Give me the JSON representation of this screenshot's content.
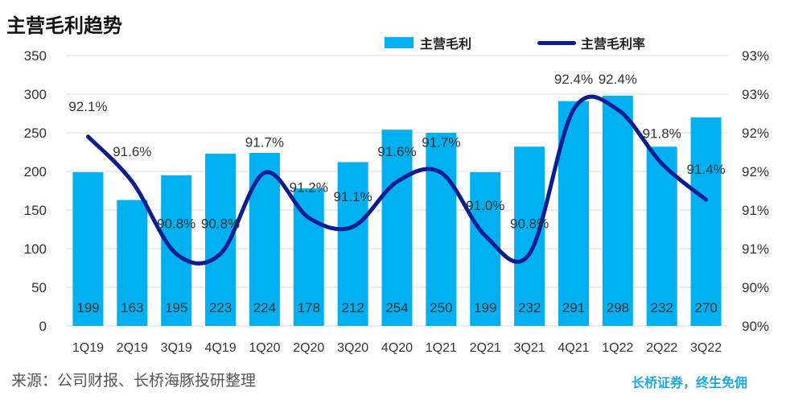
{
  "title": "主营毛利趋势",
  "source": "来源：公司财报、长桥海豚投研整理",
  "brand": "长桥证券，终生免佣",
  "colors": {
    "bar": "#00b0f0",
    "line": "#0c1e8f"
  },
  "chart_data": {
    "type": "bar",
    "categories": [
      "1Q19",
      "2Q19",
      "3Q19",
      "4Q19",
      "1Q20",
      "2Q20",
      "3Q20",
      "4Q20",
      "1Q21",
      "2Q21",
      "3Q21",
      "4Q21",
      "1Q22",
      "2Q22",
      "3Q22"
    ],
    "series": [
      {
        "name": "主营毛利",
        "type": "bar",
        "axis": "left",
        "values": [
          199,
          163,
          195,
          223,
          224,
          178,
          212,
          254,
          250,
          199,
          232,
          291,
          298,
          232,
          270
        ]
      },
      {
        "name": "主营毛利率",
        "type": "line",
        "axis": "right",
        "values": [
          92.1,
          91.6,
          90.8,
          90.8,
          91.7,
          91.2,
          91.1,
          91.6,
          91.7,
          91.0,
          90.8,
          92.4,
          92.4,
          91.8,
          91.4
        ],
        "labels": [
          "92.1%",
          "91.6%",
          "90.8%",
          "90.8%",
          "91.7%",
          "91.2%",
          "91.1%",
          "91.6%",
          "91.7%",
          "91.0%",
          "90.8%",
          "92.4%",
          "92.4%",
          "91.8%",
          "91.4%"
        ]
      }
    ],
    "left_axis": {
      "ylim": [
        0,
        350
      ],
      "ticks": [
        "0",
        "50",
        "100",
        "150",
        "200",
        "250",
        "300",
        "350"
      ]
    },
    "right_axis": {
      "ylim": [
        90,
        93
      ],
      "ticks": [
        "90%",
        "90%",
        "91%",
        "91%",
        "92%",
        "92%",
        "93%",
        "93%"
      ]
    },
    "legend_position": "top"
  }
}
